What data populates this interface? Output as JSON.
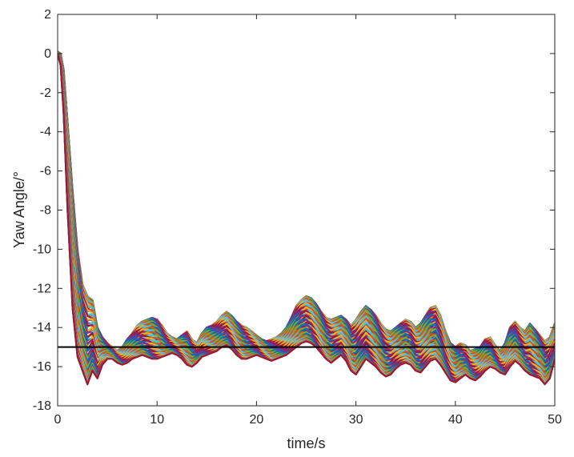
{
  "chart_data": {
    "type": "line",
    "title": "",
    "xlabel": "time/s",
    "ylabel": "Yaw Angle/°",
    "xlim": [
      0,
      50
    ],
    "ylim": [
      -18,
      2
    ],
    "xticks": [
      0,
      10,
      20,
      30,
      40,
      50
    ],
    "yticks": [
      2,
      0,
      -2,
      -4,
      -6,
      -8,
      -10,
      -12,
      -14,
      -16,
      -18
    ],
    "grid": false,
    "legend": "none",
    "reference_line": {
      "y": -15,
      "color": "#000000"
    },
    "band_colors": [
      "#0072bd",
      "#d95319",
      "#edb120",
      "#7e2f8e",
      "#77ac30",
      "#4dbeee",
      "#a2142f"
    ],
    "envelope": {
      "x": [
        0,
        0.3,
        0.6,
        1.0,
        1.5,
        2.0,
        2.5,
        3.0,
        3.5,
        4.0,
        4.5,
        5.0,
        5.5,
        6.0,
        6.5,
        7.0,
        7.5,
        8.0,
        8.5,
        9.0,
        9.5,
        10.0,
        10.5,
        11.0,
        11.5,
        12.0,
        12.5,
        13.0,
        13.5,
        14.0,
        14.5,
        15.0,
        15.5,
        16.0,
        16.5,
        17.0,
        17.5,
        18.0,
        18.5,
        19.0,
        19.5,
        20.0,
        20.5,
        21.0,
        21.5,
        22.0,
        22.5,
        23.0,
        23.5,
        24.0,
        24.5,
        25.0,
        25.5,
        26.0,
        26.5,
        27.0,
        27.5,
        28.0,
        28.5,
        29.0,
        29.5,
        30.0,
        30.5,
        31.0,
        31.5,
        32.0,
        32.5,
        33.0,
        33.5,
        34.0,
        34.5,
        35.0,
        35.5,
        36.0,
        36.5,
        37.0,
        37.5,
        38.0,
        38.5,
        39.0,
        39.5,
        40.0,
        40.5,
        41.0,
        41.5,
        42.0,
        42.5,
        43.0,
        43.5,
        44.0,
        44.5,
        45.0,
        45.5,
        46.0,
        46.5,
        47.0,
        47.5,
        48.0,
        48.5,
        49.0,
        49.5,
        50.0
      ],
      "upper": [
        0.1,
        0.0,
        -0.8,
        -3.5,
        -7.0,
        -10.0,
        -11.8,
        -12.4,
        -12.6,
        -14.0,
        -14.5,
        -14.8,
        -15.0,
        -15.2,
        -15.0,
        -14.6,
        -14.3,
        -13.9,
        -13.7,
        -13.6,
        -13.5,
        -13.6,
        -13.9,
        -14.3,
        -14.5,
        -14.6,
        -14.4,
        -14.2,
        -14.6,
        -14.8,
        -14.3,
        -14.0,
        -13.9,
        -13.7,
        -13.4,
        -13.2,
        -13.4,
        -13.7,
        -13.9,
        -14.0,
        -14.2,
        -14.4,
        -14.6,
        -14.7,
        -14.6,
        -14.5,
        -14.3,
        -14.0,
        -13.5,
        -12.9,
        -12.6,
        -12.4,
        -12.5,
        -12.8,
        -13.2,
        -13.5,
        -13.6,
        -13.5,
        -13.4,
        -13.6,
        -13.9,
        -13.6,
        -13.2,
        -12.9,
        -13.1,
        -13.4,
        -13.8,
        -14.1,
        -14.2,
        -14.0,
        -13.8,
        -13.6,
        -13.7,
        -14.0,
        -13.8,
        -13.4,
        -13.0,
        -12.9,
        -13.4,
        -14.2,
        -14.8,
        -15.0,
        -14.8,
        -14.9,
        -15.2,
        -15.1,
        -15.0,
        -14.6,
        -14.5,
        -14.9,
        -15.2,
        -14.8,
        -14.0,
        -13.7,
        -14.0,
        -14.2,
        -13.8,
        -14.1,
        -14.4,
        -14.7,
        -14.5,
        -13.8
      ],
      "lower": [
        0.0,
        -0.6,
        -3.0,
        -8.0,
        -13.0,
        -15.5,
        -16.2,
        -16.9,
        -16.2,
        -16.6,
        -15.9,
        -15.6,
        -15.6,
        -15.8,
        -15.9,
        -15.8,
        -15.6,
        -15.5,
        -15.4,
        -15.5,
        -15.6,
        -15.6,
        -15.5,
        -15.4,
        -15.3,
        -15.4,
        -15.6,
        -15.9,
        -16.0,
        -15.8,
        -15.5,
        -15.4,
        -15.3,
        -15.2,
        -15.0,
        -14.9,
        -15.1,
        -15.4,
        -15.6,
        -15.6,
        -15.5,
        -15.4,
        -15.5,
        -15.6,
        -15.7,
        -15.6,
        -15.5,
        -15.4,
        -15.2,
        -15.0,
        -14.8,
        -14.7,
        -14.8,
        -15.0,
        -15.3,
        -15.6,
        -15.8,
        -15.6,
        -15.4,
        -15.7,
        -16.2,
        -16.4,
        -16.0,
        -15.6,
        -15.8,
        -16.0,
        -16.3,
        -16.5,
        -16.4,
        -16.1,
        -15.9,
        -15.8,
        -15.9,
        -16.2,
        -16.3,
        -16.0,
        -15.7,
        -15.6,
        -15.9,
        -16.3,
        -16.7,
        -16.8,
        -16.6,
        -16.4,
        -16.6,
        -16.7,
        -16.5,
        -16.2,
        -16.0,
        -16.1,
        -16.3,
        -16.4,
        -16.0,
        -15.7,
        -15.9,
        -16.2,
        -16.4,
        -16.5,
        -16.6,
        -16.9,
        -16.6,
        -15.6
      ]
    }
  }
}
